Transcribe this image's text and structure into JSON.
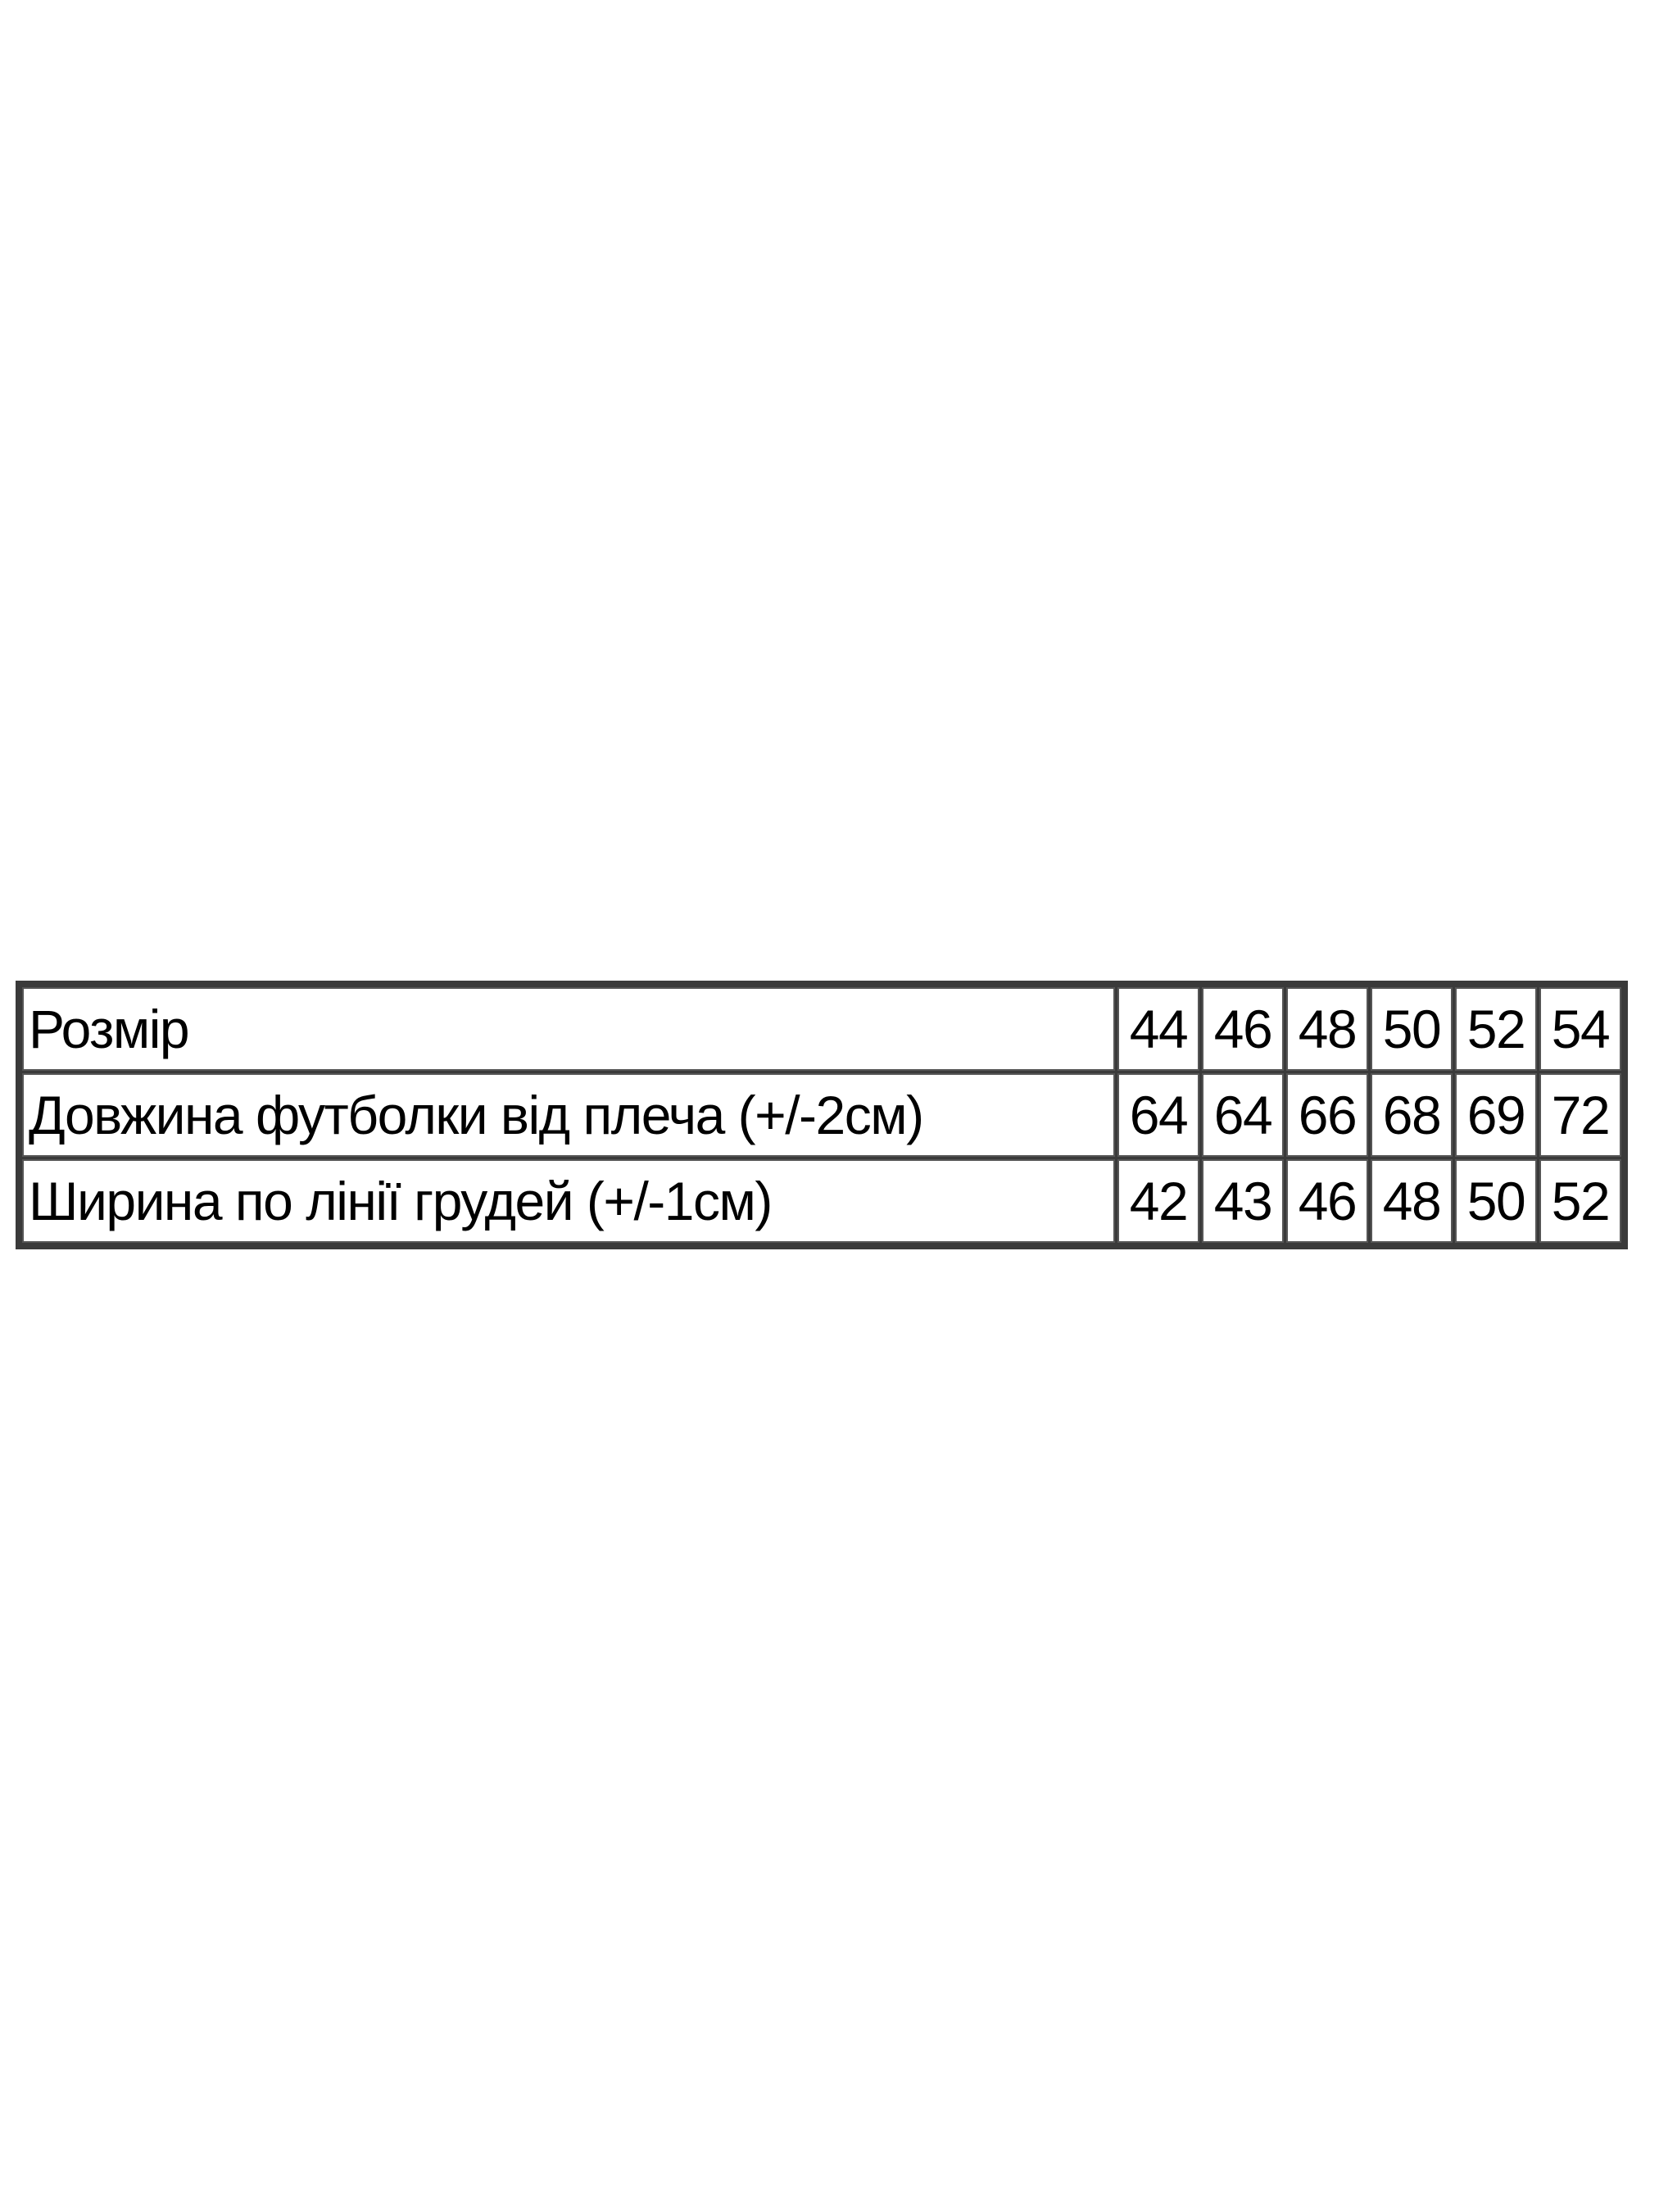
{
  "size_table": {
    "rows": [
      {
        "label": "Розмір",
        "values": [
          "44",
          "46",
          "48",
          "50",
          "52",
          "54"
        ]
      },
      {
        "label": "Довжина футболки від плеча (+/-2см)",
        "values": [
          "64",
          "64",
          "66",
          "68",
          "69",
          "72"
        ]
      },
      {
        "label": "Ширина по лінії грудей (+/-1см)",
        "values": [
          "42",
          "43",
          "46",
          "48",
          "50",
          "52"
        ]
      }
    ]
  }
}
